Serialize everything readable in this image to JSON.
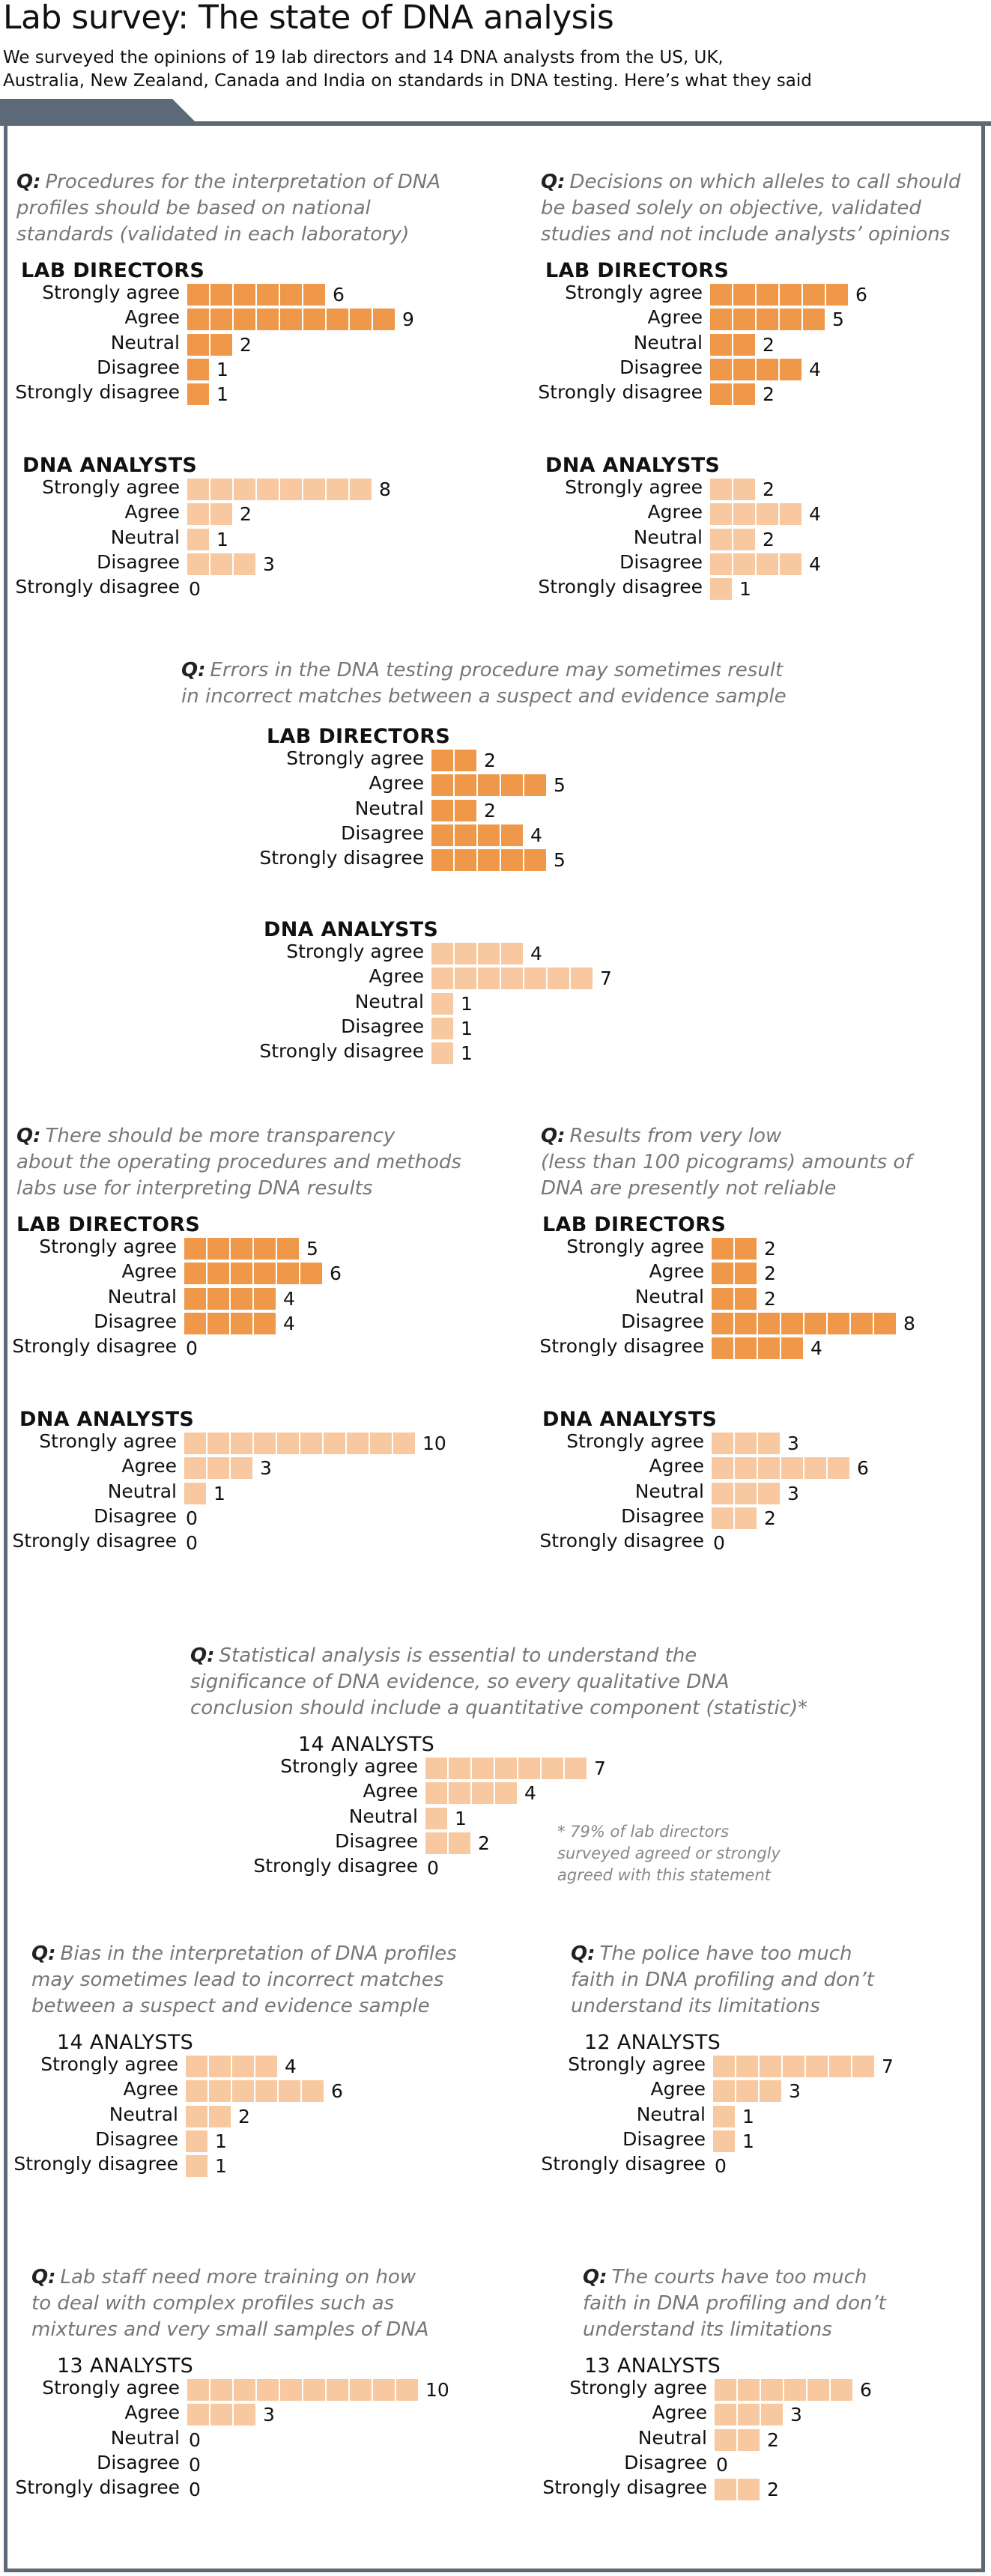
{
  "header": {
    "title": "Lab survey: The state of DNA analysis",
    "intro_line1": "We surveyed the opinions of 19 lab directors and 14 DNA analysts from the US, UK,",
    "intro_line2": "Australia, New Zealand, Canada and India on standards in DNA testing. Here’s what they said"
  },
  "colors": {
    "director_bar": "#f0984a",
    "analyst_bar": "#f8c9a0",
    "frame": "#5b6a76",
    "question_text": "#777777"
  },
  "chart_data": [
    {
      "type": "bar",
      "orientation": "horizontal",
      "id": "q1",
      "question_prefix": "Q:",
      "question_lines": [
        "Procedures for the interpretation of DNA",
        "profiles should be based on national",
        "standards (validated in each laboratory)"
      ],
      "categories": [
        "Strongly agree",
        "Agree",
        "Neutral",
        "Disagree",
        "Strongly disagree"
      ],
      "series": [
        {
          "name": "LAB DIRECTORS",
          "values": [
            6,
            9,
            2,
            1,
            1
          ]
        },
        {
          "name": "DNA ANALYSTS",
          "values": [
            8,
            2,
            1,
            3,
            0
          ]
        }
      ]
    },
    {
      "type": "bar",
      "orientation": "horizontal",
      "id": "q2",
      "question_prefix": "Q:",
      "question_lines": [
        "Decisions on which alleles to call should",
        "be based solely on objective, validated",
        "studies and not include analysts’ opinions"
      ],
      "categories": [
        "Strongly agree",
        "Agree",
        "Neutral",
        "Disagree",
        "Strongly disagree"
      ],
      "series": [
        {
          "name": "LAB DIRECTORS",
          "values": [
            6,
            5,
            2,
            4,
            2
          ]
        },
        {
          "name": "DNA ANALYSTS",
          "values": [
            2,
            4,
            2,
            4,
            1
          ]
        }
      ]
    },
    {
      "type": "bar",
      "orientation": "horizontal",
      "id": "q3",
      "question_prefix": "Q:",
      "question_lines": [
        "Errors in the DNA testing procedure may sometimes result",
        "in incorrect matches between a suspect and evidence sample"
      ],
      "categories": [
        "Strongly agree",
        "Agree",
        "Neutral",
        "Disagree",
        "Strongly disagree"
      ],
      "series": [
        {
          "name": "LAB DIRECTORS",
          "values": [
            2,
            5,
            2,
            4,
            5
          ]
        },
        {
          "name": "DNA ANALYSTS",
          "values": [
            4,
            7,
            1,
            1,
            1
          ]
        }
      ]
    },
    {
      "type": "bar",
      "orientation": "horizontal",
      "id": "q4",
      "question_prefix": "Q:",
      "question_lines": [
        "There should be more transparency",
        "about the operating procedures and methods",
        "labs use for interpreting DNA results"
      ],
      "categories": [
        "Strongly agree",
        "Agree",
        "Neutral",
        "Disagree",
        "Strongly disagree"
      ],
      "series": [
        {
          "name": "LAB DIRECTORS",
          "values": [
            5,
            6,
            4,
            4,
            0
          ]
        },
        {
          "name": "DNA ANALYSTS",
          "values": [
            10,
            3,
            1,
            0,
            0
          ]
        }
      ]
    },
    {
      "type": "bar",
      "orientation": "horizontal",
      "id": "q5",
      "question_prefix": "Q:",
      "question_lines": [
        "Results from very low",
        "(less than 100 picograms) amounts of",
        "DNA are presently not reliable"
      ],
      "categories": [
        "Strongly agree",
        "Agree",
        "Neutral",
        "Disagree",
        "Strongly disagree"
      ],
      "series": [
        {
          "name": "LAB DIRECTORS",
          "values": [
            2,
            2,
            2,
            8,
            4
          ]
        },
        {
          "name": "DNA ANALYSTS",
          "values": [
            3,
            6,
            3,
            2,
            0
          ]
        }
      ]
    },
    {
      "type": "bar",
      "orientation": "horizontal",
      "id": "q6",
      "question_prefix": "Q:",
      "question_lines": [
        "Statistical analysis is essential to understand the",
        "significance of DNA evidence, so every qualitative DNA",
        "conclusion should include a quantitative component (statistic)*"
      ],
      "categories": [
        "Strongly agree",
        "Agree",
        "Neutral",
        "Disagree",
        "Strongly disagree"
      ],
      "series": [
        {
          "name": "14 ANALYSTS",
          "values": [
            7,
            4,
            1,
            2,
            0
          ]
        }
      ],
      "note_lines": [
        "* 79% of lab directors",
        "surveyed agreed or strongly",
        "agreed with this statement"
      ]
    },
    {
      "type": "bar",
      "orientation": "horizontal",
      "id": "q7",
      "question_prefix": "Q:",
      "question_lines": [
        "Bias in the interpretation of DNA profiles",
        "may sometimes lead to incorrect matches",
        "between a suspect and evidence sample"
      ],
      "categories": [
        "Strongly agree",
        "Agree",
        "Neutral",
        "Disagree",
        "Strongly disagree"
      ],
      "series": [
        {
          "name": "14 ANALYSTS",
          "values": [
            4,
            6,
            2,
            1,
            1
          ]
        }
      ]
    },
    {
      "type": "bar",
      "orientation": "horizontal",
      "id": "q8",
      "question_prefix": "Q:",
      "question_lines": [
        "The police have too much",
        "faith in DNA profiling and don’t",
        "understand its limitations"
      ],
      "categories": [
        "Strongly agree",
        "Agree",
        "Neutral",
        "Disagree",
        "Strongly disagree"
      ],
      "series": [
        {
          "name": "12 ANALYSTS",
          "values": [
            7,
            3,
            1,
            1,
            0
          ]
        }
      ]
    },
    {
      "type": "bar",
      "orientation": "horizontal",
      "id": "q9",
      "question_prefix": "Q:",
      "question_lines": [
        "Lab staff need more training on how",
        "to deal with complex profiles such as",
        "mixtures and very small samples of DNA"
      ],
      "categories": [
        "Strongly agree",
        "Agree",
        "Neutral",
        "Disagree",
        "Strongly disagree"
      ],
      "series": [
        {
          "name": "13 ANALYSTS",
          "values": [
            10,
            3,
            0,
            0,
            0
          ]
        }
      ]
    },
    {
      "type": "bar",
      "orientation": "horizontal",
      "id": "q10",
      "question_prefix": "Q:",
      "question_lines": [
        "The courts have too much",
        "faith in DNA profiling and don’t",
        "understand its limitations"
      ],
      "categories": [
        "Strongly agree",
        "Agree",
        "Neutral",
        "Disagree",
        "Strongly disagree"
      ],
      "series": [
        {
          "name": "13 ANALYSTS",
          "values": [
            6,
            3,
            2,
            0,
            2
          ]
        }
      ]
    }
  ]
}
